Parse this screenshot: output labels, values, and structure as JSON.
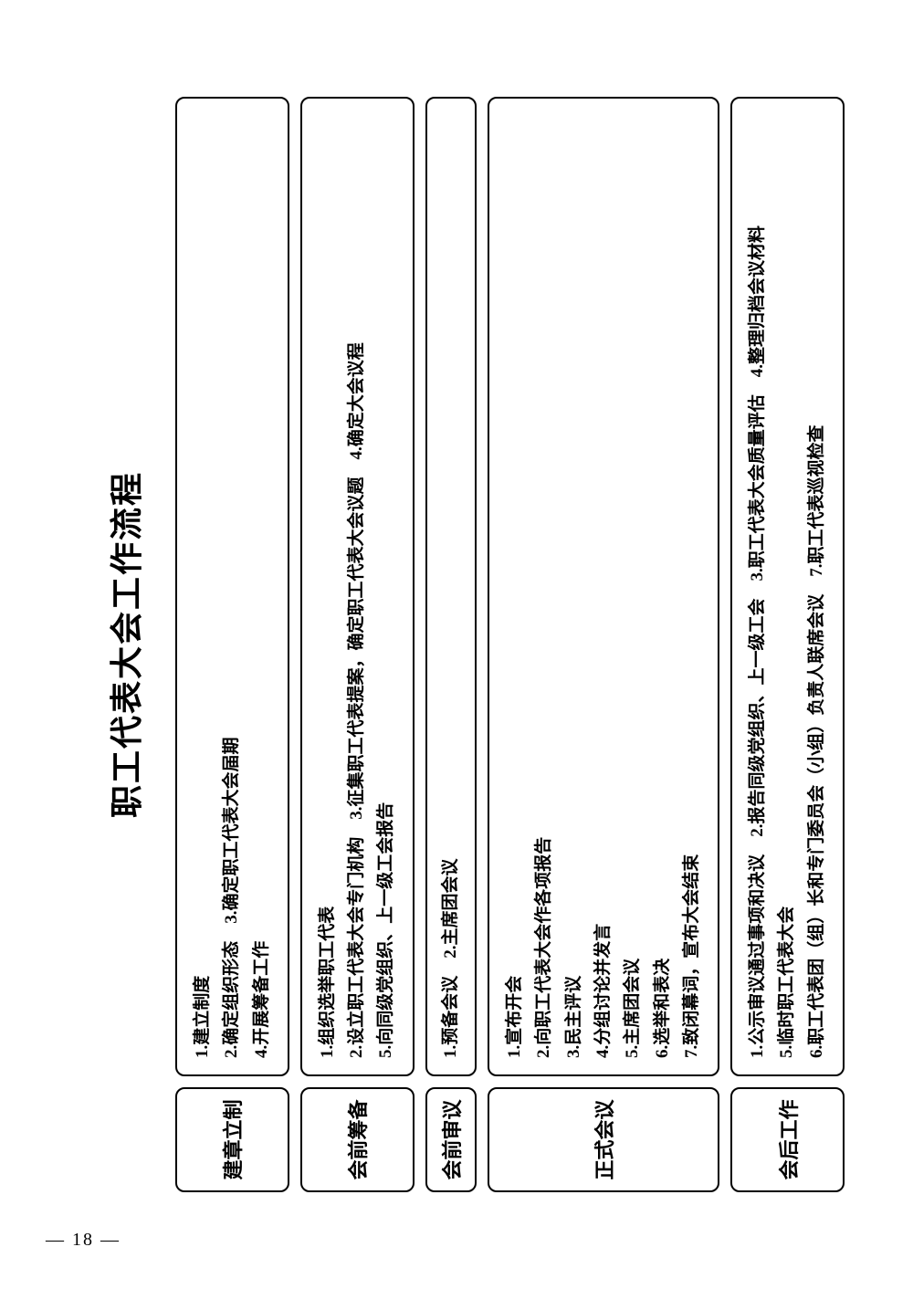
{
  "page_number": "— 18 —",
  "title": "职工代表大会工作流程",
  "phases": [
    {
      "label": "建章立制",
      "content": "1.建立制度\n2.确定组织形态　3.确定职工代表大会届期\n4.开展筹备工作"
    },
    {
      "label": "会前筹备",
      "content": "1.组织选举职工代表\n2.设立职工代表大会专门机构　3.征集职工代表提案，确定职工代表大会议题　4.确定大会议程\n5.向同级党组织、上一级工会报告"
    },
    {
      "label": "会前审议",
      "content": "1.预备会议　2.主席团会议"
    },
    {
      "label": "正式会议",
      "content": "1.宣布开会\n2.向职工代表大会作各项报告\n3.民主评议\n4.分组讨论并发言\n5.主席团会议\n6.选举和表决\n7.致闭幕词，宣布大会结束"
    },
    {
      "label": "会后工作",
      "content": "1.公示审议通过事项和决议　2.报告同级党组织、上一级工会　3.职工代表大会质量评估　4.整理归档会议材料\n5.临时职工代表大会\n6.职工代表团（组）长和专门委员会（小组）负责人联席会议　7.职工代表巡视检查"
    }
  ]
}
